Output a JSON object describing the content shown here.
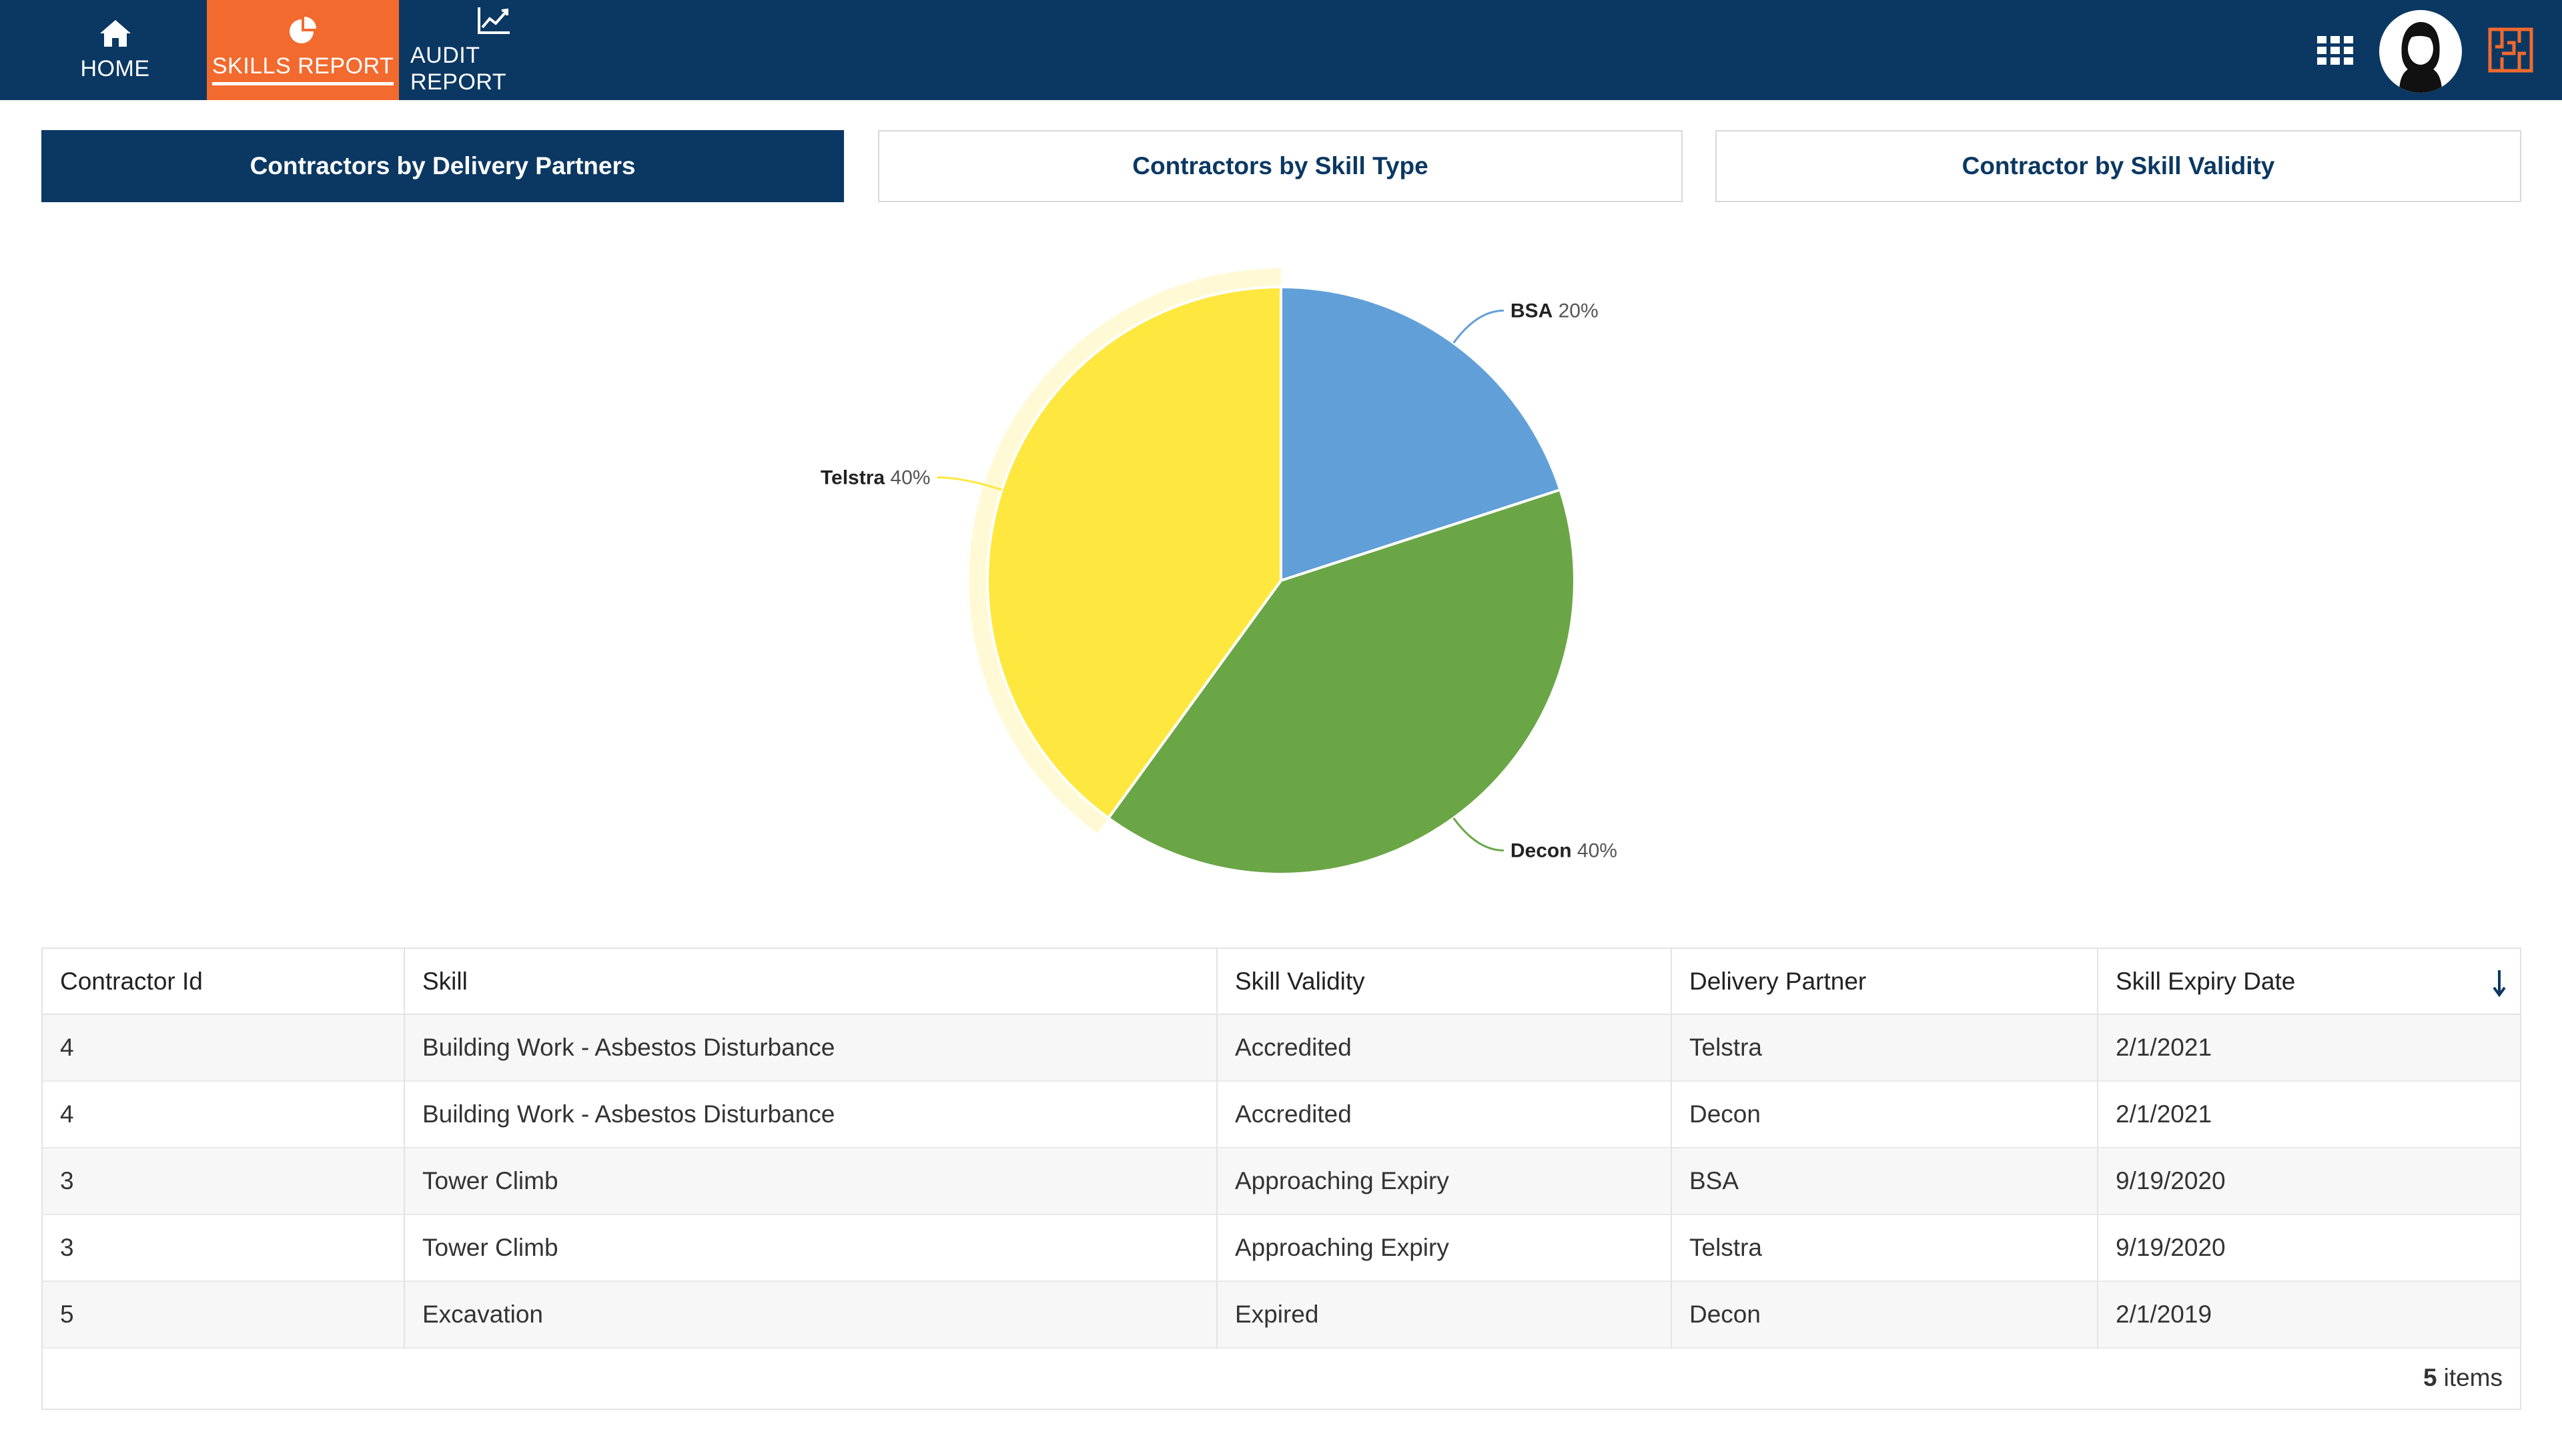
{
  "nav": {
    "items": [
      {
        "label": "HOME",
        "icon": "home-icon"
      },
      {
        "label": "SKILLS REPORT",
        "icon": "pie-chart-icon",
        "active": true
      },
      {
        "label": "AUDIT REPORT",
        "icon": "line-chart-icon"
      }
    ],
    "right_icons": [
      "apps-grid-icon",
      "user-avatar",
      "brand-logo-icon"
    ]
  },
  "chart_tabs": [
    {
      "label": "Contractors by Delivery Partners",
      "active": true
    },
    {
      "label": "Contractors by Skill Type",
      "active": false
    },
    {
      "label": "Contractor by Skill Validity",
      "active": false
    }
  ],
  "chart_data": {
    "type": "pie",
    "slices": [
      {
        "name": "BSA",
        "value": 20,
        "label": "20%",
        "color": "#619fd8"
      },
      {
        "name": "Decon",
        "value": 40,
        "label": "40%",
        "color": "#6aa646"
      },
      {
        "name": "Telstra",
        "value": 40,
        "label": "40%",
        "color": "#fee840"
      }
    ],
    "highlighted": "Telstra"
  },
  "grid": {
    "columns": [
      "Contractor Id",
      "Skill",
      "Skill Validity",
      "Delivery Partner",
      "Skill Expiry Date"
    ],
    "sorted_column": "Skill Expiry Date",
    "sort_direction": "descending",
    "rows": [
      [
        "4",
        "Building Work - Asbestos Disturbance",
        "Accredited",
        "Telstra",
        "2/1/2021"
      ],
      [
        "4",
        "Building Work - Asbestos Disturbance",
        "Accredited",
        "Decon",
        "2/1/2021"
      ],
      [
        "3",
        "Tower Climb",
        "Approaching Expiry",
        "BSA",
        "9/19/2020"
      ],
      [
        "3",
        "Tower Climb",
        "Approaching Expiry",
        "Telstra",
        "9/19/2020"
      ],
      [
        "5",
        "Excavation",
        "Expired",
        "Decon",
        "2/1/2019"
      ]
    ],
    "footer": {
      "count": "5",
      "label": "items"
    }
  },
  "colors": {
    "nav_bg": "#0b3863",
    "nav_active": "#f26a2e",
    "brand_logo": "#f26a2e"
  }
}
